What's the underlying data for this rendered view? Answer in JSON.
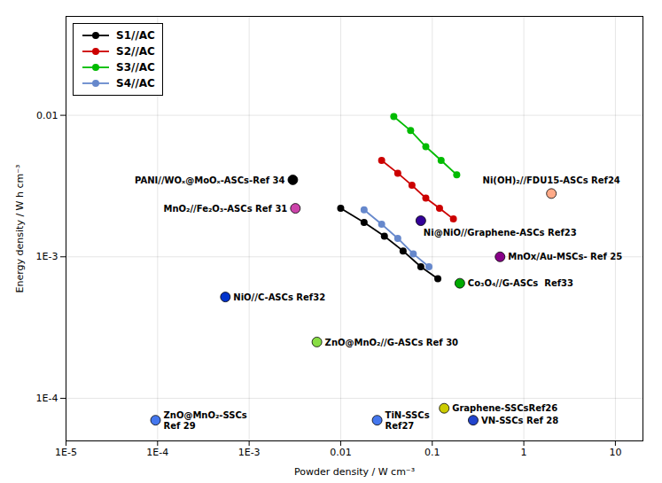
{
  "chart_data": {
    "type": "line",
    "xlabel": "Powder density / W cm⁻³",
    "ylabel": "Energy density / W h cm⁻³",
    "log": true,
    "xlim": [
      1e-05,
      20
    ],
    "ylim": [
      5e-05,
      0.05
    ],
    "xticks": [
      {
        "value": 1e-05,
        "label": "1E-5"
      },
      {
        "value": 0.0001,
        "label": "1E-4"
      },
      {
        "value": 0.001,
        "label": "1E-3"
      },
      0.01,
      0.1,
      1,
      10
    ],
    "yticks": [
      {
        "value": 0.0001,
        "label": "1E-4"
      },
      {
        "value": 0.001,
        "label": "1E-3"
      },
      0.01
    ],
    "grid": true,
    "legend": "upper left",
    "marker": "o",
    "series": [
      {
        "name": "S1//AC",
        "color": "#000000",
        "x": [
          0.01,
          0.018,
          0.03,
          0.048,
          0.075,
          0.115
        ],
        "values": [
          0.0022,
          0.00175,
          0.0014,
          0.0011,
          0.00085,
          0.0007
        ]
      },
      {
        "name": "S2//AC",
        "color": "#cc0000",
        "x": [
          0.028,
          0.042,
          0.06,
          0.085,
          0.12,
          0.17
        ],
        "values": [
          0.0048,
          0.0039,
          0.0032,
          0.0026,
          0.0022,
          0.00185
        ]
      },
      {
        "name": "S3//AC",
        "color": "#00bb00",
        "x": [
          0.038,
          0.058,
          0.085,
          0.125,
          0.185
        ],
        "values": [
          0.0098,
          0.0078,
          0.006,
          0.0048,
          0.0038
        ]
      },
      {
        "name": "S4//AC",
        "color": "#6688cc",
        "x": [
          0.018,
          0.028,
          0.042,
          0.062,
          0.092
        ],
        "values": [
          0.00215,
          0.0017,
          0.00135,
          0.00105,
          0.00085
        ]
      }
    ],
    "annotations": [
      {
        "text": "PANI//WOₓ@MoOₓ-ASCs-Ref 34",
        "x": 0.003,
        "y": 0.0035,
        "color": "#000000"
      },
      {
        "text": "MnO₂//Fe₂O₃-ASCs Ref 31",
        "x": 0.0032,
        "y": 0.0022,
        "color": "#cc44aa"
      },
      {
        "text": "NiO//C-ASCs Ref32",
        "x": 0.00055,
        "y": 0.00052,
        "color": "#0033cc"
      },
      {
        "text": "Ni(OH)₂//FDU15-ASCs Ref24",
        "x": 2.0,
        "y": 0.0028,
        "color": "#ffaa88"
      },
      {
        "text": "Ni@NiO//Graphene-ASCs Ref23",
        "x": 0.075,
        "y": 0.0018,
        "color": "#330099"
      },
      {
        "text": "MnOx/Au-MSCs- Ref 25",
        "x": 0.55,
        "y": 0.001,
        "color": "#880088"
      },
      {
        "text": "Co₃O₄//G-ASCs  Ref33",
        "x": 0.2,
        "y": 0.00065,
        "color": "#00aa00"
      },
      {
        "text": "ZnO@MnO₂//G-ASCs Ref 30",
        "x": 0.0055,
        "y": 0.00025,
        "color": "#88dd44"
      },
      {
        "text": "Graphene-SSCsRef26",
        "x": 0.135,
        "y": 8.5e-05,
        "color": "#cccc00"
      },
      {
        "text": "ZnO@MnO₂-SSCs\nRef 29",
        "x": 9.5e-05,
        "y": 7e-05,
        "color": "#4477ee"
      },
      {
        "text": "TiN-SSCs\nRef27",
        "x": 0.025,
        "y": 7e-05,
        "color": "#4477ee"
      },
      {
        "text": "VN-SSCs Ref 28",
        "x": 0.28,
        "y": 7e-05,
        "color": "#2244cc"
      }
    ]
  }
}
